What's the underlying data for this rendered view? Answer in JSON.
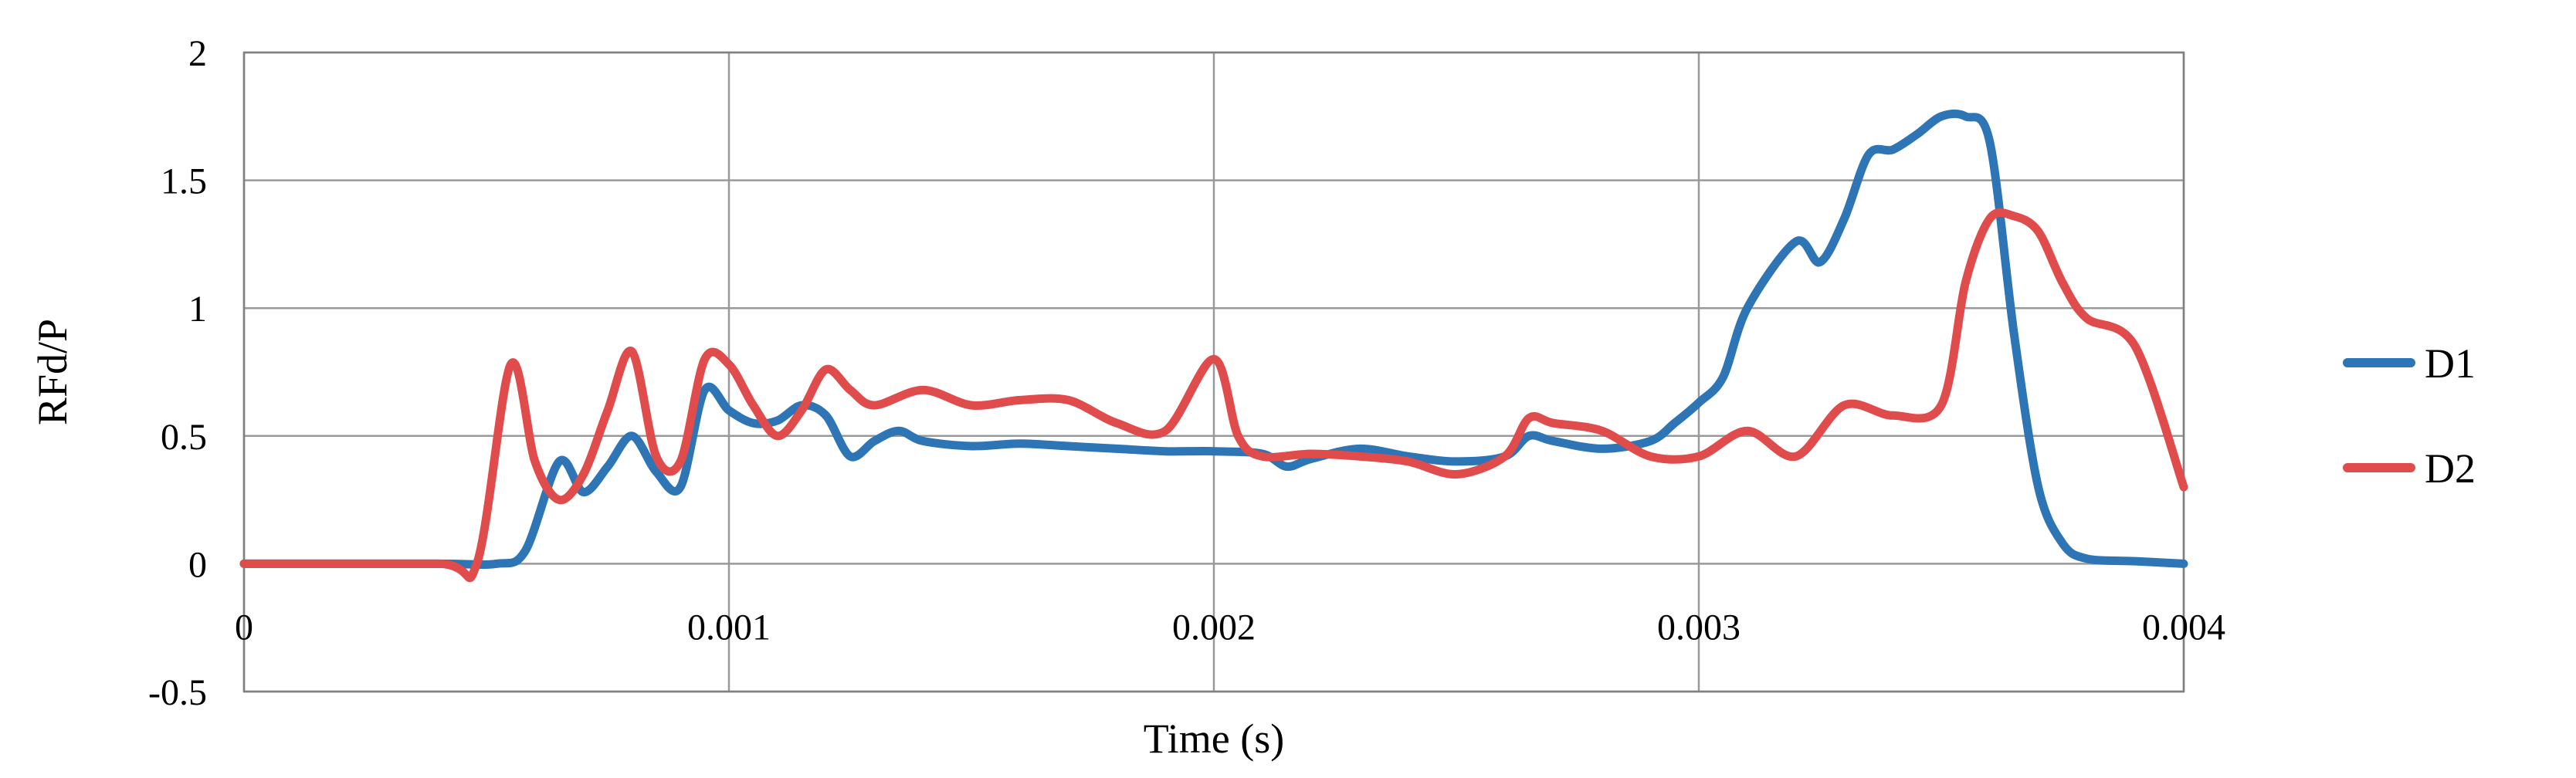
{
  "chart_data": {
    "type": "line",
    "title": "",
    "xlabel": "Time (s)",
    "ylabel": "RFd/P",
    "xlim": [
      0,
      0.004
    ],
    "ylim": [
      -0.5,
      2
    ],
    "x_ticks": [
      0,
      0.001,
      0.002,
      0.003,
      0.004
    ],
    "x_tick_labels": [
      "0",
      "0.001",
      "0.002",
      "0.003",
      "0.004"
    ],
    "y_ticks": [
      -0.5,
      0,
      0.5,
      1,
      1.5,
      2
    ],
    "y_tick_labels": [
      "-0.5",
      "0",
      "0.5",
      "1",
      "1.5",
      "2"
    ],
    "grid": true,
    "legend_position": "right",
    "series": [
      {
        "name": "D1",
        "color": "#2E75B6",
        "x": [
          0,
          0.0004,
          0.00052,
          0.00058,
          0.00065,
          0.0007,
          0.00075,
          0.0008,
          0.00085,
          0.0009,
          0.00095,
          0.001,
          0.00105,
          0.0011,
          0.00115,
          0.0012,
          0.00125,
          0.0013,
          0.00135,
          0.0014,
          0.0015,
          0.0016,
          0.0017,
          0.0018,
          0.0019,
          0.002,
          0.0021,
          0.00215,
          0.0022,
          0.0023,
          0.0024,
          0.0025,
          0.0026,
          0.00265,
          0.0027,
          0.0028,
          0.0029,
          0.00295,
          0.003,
          0.00305,
          0.0031,
          0.0032,
          0.00325,
          0.0033,
          0.00335,
          0.0034,
          0.00345,
          0.0035,
          0.00355,
          0.0036,
          0.00365,
          0.0037,
          0.00375,
          0.0038,
          0.0039,
          0.004
        ],
        "y": [
          0,
          0,
          0,
          0.05,
          0.4,
          0.28,
          0.38,
          0.5,
          0.36,
          0.3,
          0.68,
          0.6,
          0.55,
          0.56,
          0.62,
          0.58,
          0.42,
          0.48,
          0.52,
          0.48,
          0.46,
          0.47,
          0.46,
          0.45,
          0.44,
          0.44,
          0.43,
          0.38,
          0.41,
          0.45,
          0.42,
          0.4,
          0.42,
          0.5,
          0.48,
          0.45,
          0.48,
          0.55,
          0.63,
          0.73,
          1.0,
          1.26,
          1.18,
          1.35,
          1.6,
          1.62,
          1.68,
          1.75,
          1.75,
          1.65,
          0.9,
          0.3,
          0.08,
          0.02,
          0.01,
          0
        ]
      },
      {
        "name": "D2",
        "color": "#E04B4B",
        "x": [
          0,
          0.0004,
          0.00048,
          0.00055,
          0.0006,
          0.00065,
          0.0007,
          0.00075,
          0.0008,
          0.00085,
          0.0009,
          0.00095,
          0.001,
          0.00105,
          0.0011,
          0.00115,
          0.0012,
          0.00125,
          0.0013,
          0.0014,
          0.0015,
          0.0016,
          0.0017,
          0.0018,
          0.0019,
          0.002,
          0.00205,
          0.0021,
          0.0022,
          0.0023,
          0.0024,
          0.0025,
          0.0026,
          0.00265,
          0.0027,
          0.0028,
          0.0029,
          0.003,
          0.0031,
          0.0032,
          0.0033,
          0.0034,
          0.0035,
          0.00355,
          0.0036,
          0.00365,
          0.0037,
          0.00375,
          0.0038,
          0.0039,
          0.004
        ],
        "y": [
          0,
          0,
          0,
          0.78,
          0.4,
          0.25,
          0.35,
          0.6,
          0.83,
          0.42,
          0.4,
          0.8,
          0.78,
          0.62,
          0.5,
          0.6,
          0.76,
          0.68,
          0.62,
          0.68,
          0.62,
          0.64,
          0.64,
          0.55,
          0.52,
          0.8,
          0.5,
          0.42,
          0.43,
          0.42,
          0.4,
          0.35,
          0.42,
          0.57,
          0.55,
          0.52,
          0.42,
          0.42,
          0.52,
          0.42,
          0.62,
          0.58,
          0.62,
          1.1,
          1.35,
          1.36,
          1.3,
          1.1,
          0.96,
          0.85,
          0.3
        ]
      }
    ]
  }
}
